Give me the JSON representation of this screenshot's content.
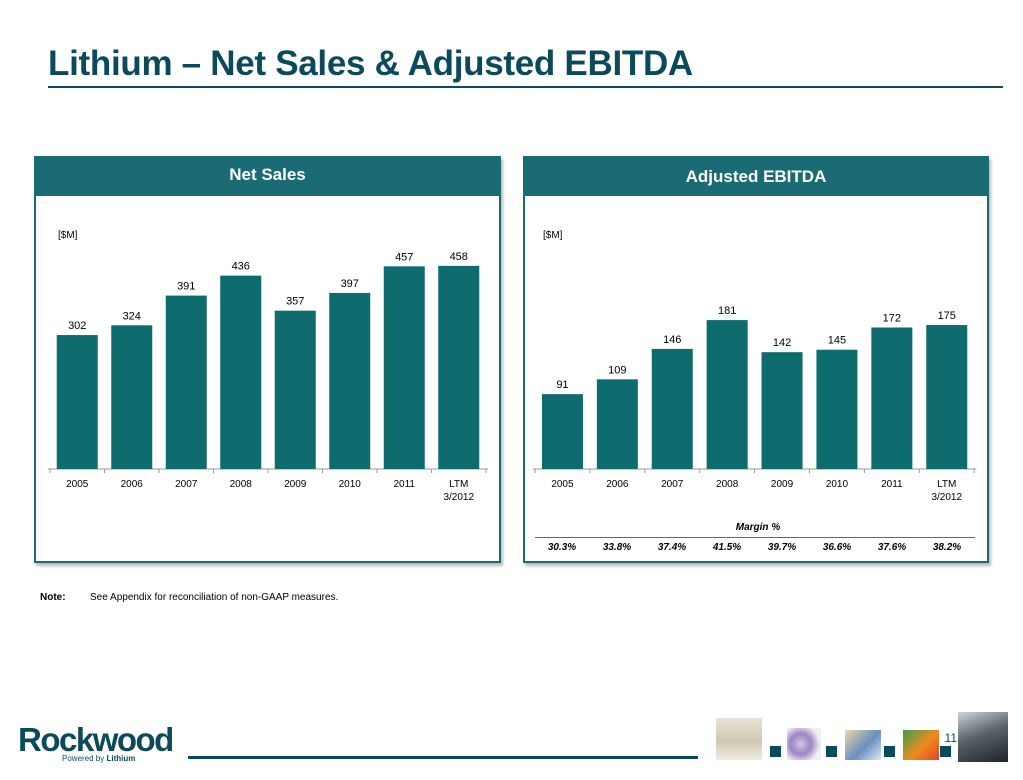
{
  "title": "Lithium – Net Sales & Adjusted EBITDA",
  "page_number": "11",
  "note": {
    "label": "Note:",
    "text": "See Appendix for reconciliation of non-GAAP measures."
  },
  "logo": {
    "name": "Rockwood",
    "tagline_prefix": "Powered by",
    "tagline_brand": "Lithium"
  },
  "colors": {
    "accent": "#0b4a5c",
    "bar": "#0e6b6e",
    "header": "#1a6b73"
  },
  "net_sales": {
    "header": "Net Sales",
    "unit": "[$M]"
  },
  "ebitda": {
    "header": "Adjusted EBITDA",
    "unit": "[$M]",
    "margin_title": "Margin %",
    "margins": [
      "30.3%",
      "33.8%",
      "37.4%",
      "41.5%",
      "39.7%",
      "36.6%",
      "37.6%",
      "38.2%"
    ]
  },
  "chart_data": [
    {
      "type": "bar",
      "title": "Net Sales",
      "ylabel": "[$M]",
      "categories": [
        "2005",
        "2006",
        "2007",
        "2008",
        "2009",
        "2010",
        "2011",
        "LTM\n3/2012"
      ],
      "values": [
        302,
        324,
        391,
        436,
        357,
        397,
        457,
        458
      ],
      "grid": false
    },
    {
      "type": "bar",
      "title": "Adjusted EBITDA",
      "ylabel": "[$M]",
      "categories": [
        "2005",
        "2006",
        "2007",
        "2008",
        "2009",
        "2010",
        "2011",
        "LTM\n3/2012"
      ],
      "values": [
        91,
        109,
        146,
        181,
        142,
        145,
        172,
        175
      ],
      "grid": false
    }
  ]
}
